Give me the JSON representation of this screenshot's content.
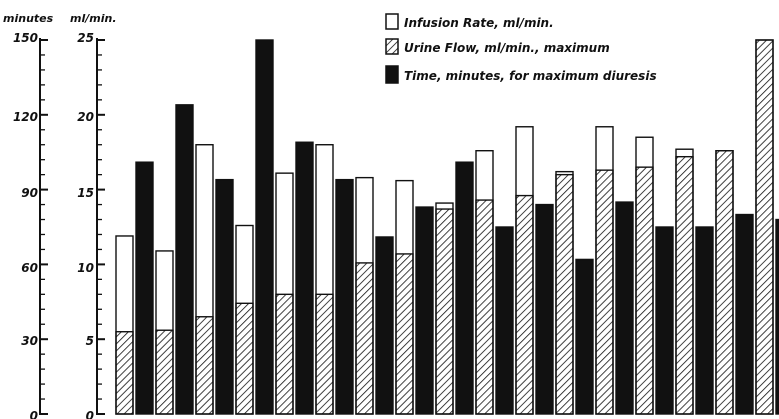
{
  "chart_data": {
    "type": "bar",
    "left_axis_label": "minutes",
    "right_axis_label": "ml/min.",
    "minutes_ticks": [
      "150",
      "120",
      "90",
      "60",
      "30",
      "0"
    ],
    "ml_ticks": [
      "25",
      "20",
      "15",
      "10",
      "5",
      "0"
    ],
    "minutes_range": [
      0,
      150
    ],
    "ml_range": [
      0,
      25
    ],
    "legend": {
      "infusion": "Infusion Rate, ml/min.",
      "urine": "Urine Flow, ml/min., maximum",
      "time": "Time, minutes, for maximum diuresis"
    },
    "legend_position": "top-right",
    "colors": {
      "ink": "#111111",
      "paper": "#ffffff"
    },
    "groups": [
      {
        "infusion": 11.9,
        "urine": 5.5,
        "time": 101
      },
      {
        "infusion": 10.9,
        "urine": 5.6,
        "time": 124
      },
      {
        "infusion": 18.0,
        "urine": 6.5,
        "time": 94
      },
      {
        "infusion": 12.6,
        "urine": 7.4,
        "time": 150
      },
      {
        "infusion": 16.1,
        "urine": 8.0,
        "time": 109
      },
      {
        "infusion": 18.0,
        "urine": 8.0,
        "time": 94
      },
      {
        "infusion": 15.8,
        "urine": 10.1,
        "time": 71
      },
      {
        "infusion": 15.6,
        "urine": 10.7,
        "time": 83
      },
      {
        "infusion": 14.1,
        "urine": 13.7,
        "time": 101
      },
      {
        "infusion": 17.6,
        "urine": 14.3,
        "time": 75
      },
      {
        "infusion": 19.2,
        "urine": 14.6,
        "time": 84
      },
      {
        "infusion": 16.2,
        "urine": 16.0,
        "time": 62
      },
      {
        "infusion": 19.2,
        "urine": 16.3,
        "time": 85
      },
      {
        "infusion": 18.5,
        "urine": 16.5,
        "time": 75
      },
      {
        "infusion": 17.7,
        "urine": 17.2,
        "time": 75
      },
      {
        "infusion": 16.5,
        "urine": 17.6,
        "time": 80
      },
      {
        "infusion": 24.1,
        "urine": 25.0,
        "time": 78
      }
    ]
  }
}
